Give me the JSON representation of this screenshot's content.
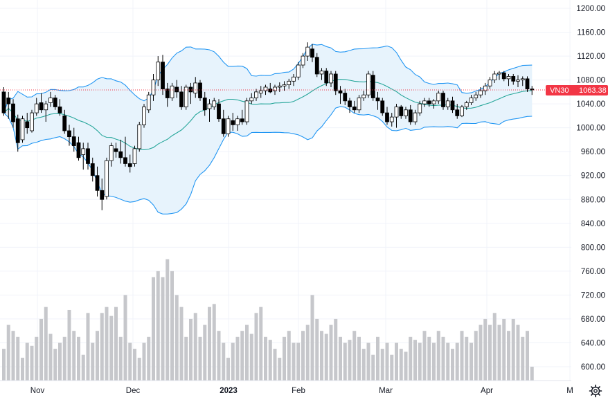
{
  "chart_data": {
    "type": "candlestick",
    "symbol": "VN30",
    "last_price": "1063.38",
    "price_axis": {
      "min": 560,
      "max": 1230,
      "ticks": [
        "1200.00",
        "1160.00",
        "1120.00",
        "1080.00",
        "1040.00",
        "1000.00",
        "960.00",
        "920.00",
        "880.00",
        "840.00",
        "800.00",
        "760.00",
        "720.00",
        "680.00",
        "640.00",
        "600.00"
      ]
    },
    "time_axis": {
      "labels": [
        "Nov",
        "Dec",
        "2023",
        "Feb",
        "Mar",
        "Apr",
        "M"
      ]
    },
    "indicators": [
      "Bollinger Bands (20, 2)",
      "Volume"
    ],
    "colors": {
      "band_fill": "#e7f3fc",
      "band_line": "#2196f3",
      "basis_line": "#26a69a",
      "up_body": "#ffffff",
      "down_body": "#000000",
      "volume": "#c6c7cb",
      "last_label_bg": "#f23645",
      "last_line": "#f23645",
      "grid": "#f0f3fa",
      "text": "#131722"
    },
    "candles": [
      {
        "o": 1060,
        "h": 1068,
        "l": 1020,
        "c": 1025
      },
      {
        "o": 1050,
        "h": 1060,
        "l": 1015,
        "c": 1040
      },
      {
        "o": 1040,
        "h": 1048,
        "l": 1000,
        "c": 1010
      },
      {
        "o": 1015,
        "h": 1022,
        "l": 960,
        "c": 975
      },
      {
        "o": 980,
        "h": 1020,
        "l": 975,
        "c": 1015
      },
      {
        "o": 1010,
        "h": 1025,
        "l": 990,
        "c": 1000
      },
      {
        "o": 995,
        "h": 1030,
        "l": 992,
        "c": 1025
      },
      {
        "o": 1025,
        "h": 1050,
        "l": 1020,
        "c": 1040
      },
      {
        "o": 1042,
        "h": 1058,
        "l": 1025,
        "c": 1030
      },
      {
        "o": 1030,
        "h": 1045,
        "l": 1010,
        "c": 1040
      },
      {
        "o": 1042,
        "h": 1060,
        "l": 1035,
        "c": 1050
      },
      {
        "o": 1050,
        "h": 1055,
        "l": 1030,
        "c": 1035
      },
      {
        "o": 1035,
        "h": 1048,
        "l": 1020,
        "c": 1025
      },
      {
        "o": 1020,
        "h": 1030,
        "l": 990,
        "c": 995
      },
      {
        "o": 995,
        "h": 1005,
        "l": 970,
        "c": 985
      },
      {
        "o": 985,
        "h": 1000,
        "l": 960,
        "c": 970
      },
      {
        "o": 975,
        "h": 985,
        "l": 945,
        "c": 950
      },
      {
        "o": 955,
        "h": 975,
        "l": 930,
        "c": 965
      },
      {
        "o": 965,
        "h": 975,
        "l": 930,
        "c": 940
      },
      {
        "o": 940,
        "h": 950,
        "l": 910,
        "c": 920
      },
      {
        "o": 920,
        "h": 935,
        "l": 885,
        "c": 895
      },
      {
        "o": 895,
        "h": 915,
        "l": 862,
        "c": 880
      },
      {
        "o": 885,
        "h": 950,
        "l": 880,
        "c": 945
      },
      {
        "o": 945,
        "h": 975,
        "l": 935,
        "c": 970
      },
      {
        "o": 965,
        "h": 975,
        "l": 950,
        "c": 960
      },
      {
        "o": 960,
        "h": 980,
        "l": 940,
        "c": 950
      },
      {
        "o": 950,
        "h": 985,
        "l": 935,
        "c": 940
      },
      {
        "o": 940,
        "h": 955,
        "l": 925,
        "c": 935
      },
      {
        "o": 940,
        "h": 970,
        "l": 935,
        "c": 965
      },
      {
        "o": 965,
        "h": 1010,
        "l": 960,
        "c": 1005
      },
      {
        "o": 1005,
        "h": 1040,
        "l": 1000,
        "c": 1035
      },
      {
        "o": 1030,
        "h": 1060,
        "l": 1025,
        "c": 1055
      },
      {
        "o": 1055,
        "h": 1090,
        "l": 1045,
        "c": 1080
      },
      {
        "o": 1080,
        "h": 1120,
        "l": 1070,
        "c": 1110
      },
      {
        "o": 1110,
        "h": 1122,
        "l": 1055,
        "c": 1065
      },
      {
        "o": 1065,
        "h": 1075,
        "l": 1035,
        "c": 1050
      },
      {
        "o": 1050,
        "h": 1075,
        "l": 1045,
        "c": 1070
      },
      {
        "o": 1068,
        "h": 1080,
        "l": 1050,
        "c": 1060
      },
      {
        "o": 1060,
        "h": 1070,
        "l": 1030,
        "c": 1035
      },
      {
        "o": 1035,
        "h": 1072,
        "l": 1030,
        "c": 1068
      },
      {
        "o": 1068,
        "h": 1075,
        "l": 1040,
        "c": 1060
      },
      {
        "o": 1058,
        "h": 1085,
        "l": 1050,
        "c": 1075
      },
      {
        "o": 1075,
        "h": 1080,
        "l": 1045,
        "c": 1050
      },
      {
        "o": 1050,
        "h": 1060,
        "l": 1020,
        "c": 1030
      },
      {
        "o": 1032,
        "h": 1048,
        "l": 1010,
        "c": 1040
      },
      {
        "o": 1035,
        "h": 1050,
        "l": 1030,
        "c": 1045
      },
      {
        "o": 1040,
        "h": 1048,
        "l": 1010,
        "c": 1015
      },
      {
        "o": 1015,
        "h": 1030,
        "l": 985,
        "c": 990
      },
      {
        "o": 990,
        "h": 1020,
        "l": 985,
        "c": 1015
      },
      {
        "o": 1012,
        "h": 1025,
        "l": 995,
        "c": 1005
      },
      {
        "o": 1005,
        "h": 1020,
        "l": 995,
        "c": 1015
      },
      {
        "o": 1015,
        "h": 1030,
        "l": 1005,
        "c": 1010
      },
      {
        "o": 1010,
        "h": 1050,
        "l": 1005,
        "c": 1045
      },
      {
        "o": 1045,
        "h": 1058,
        "l": 1040,
        "c": 1050
      },
      {
        "o": 1050,
        "h": 1065,
        "l": 1045,
        "c": 1060
      },
      {
        "o": 1058,
        "h": 1070,
        "l": 1050,
        "c": 1062
      },
      {
        "o": 1062,
        "h": 1072,
        "l": 1055,
        "c": 1068
      },
      {
        "o": 1065,
        "h": 1075,
        "l": 1058,
        "c": 1060
      },
      {
        "o": 1062,
        "h": 1072,
        "l": 1055,
        "c": 1068
      },
      {
        "o": 1068,
        "h": 1076,
        "l": 1060,
        "c": 1070
      },
      {
        "o": 1070,
        "h": 1078,
        "l": 1062,
        "c": 1072
      },
      {
        "o": 1072,
        "h": 1082,
        "l": 1065,
        "c": 1078
      },
      {
        "o": 1078,
        "h": 1090,
        "l": 1070,
        "c": 1085
      },
      {
        "o": 1085,
        "h": 1110,
        "l": 1080,
        "c": 1105
      },
      {
        "o": 1105,
        "h": 1125,
        "l": 1100,
        "c": 1120
      },
      {
        "o": 1120,
        "h": 1143,
        "l": 1112,
        "c": 1135
      },
      {
        "o": 1132,
        "h": 1140,
        "l": 1110,
        "c": 1118
      },
      {
        "o": 1118,
        "h": 1125,
        "l": 1085,
        "c": 1090
      },
      {
        "o": 1090,
        "h": 1100,
        "l": 1080,
        "c": 1095
      },
      {
        "o": 1095,
        "h": 1100,
        "l": 1070,
        "c": 1075
      },
      {
        "o": 1075,
        "h": 1095,
        "l": 1068,
        "c": 1090
      },
      {
        "o": 1090,
        "h": 1095,
        "l": 1055,
        "c": 1062
      },
      {
        "o": 1062,
        "h": 1070,
        "l": 1040,
        "c": 1058
      },
      {
        "o": 1058,
        "h": 1065,
        "l": 1038,
        "c": 1045
      },
      {
        "o": 1045,
        "h": 1050,
        "l": 1025,
        "c": 1035
      },
      {
        "o": 1035,
        "h": 1045,
        "l": 1025,
        "c": 1030
      },
      {
        "o": 1030,
        "h": 1055,
        "l": 1025,
        "c": 1050
      },
      {
        "o": 1050,
        "h": 1062,
        "l": 1045,
        "c": 1055
      },
      {
        "o": 1055,
        "h": 1095,
        "l": 1050,
        "c": 1090
      },
      {
        "o": 1088,
        "h": 1095,
        "l": 1045,
        "c": 1050
      },
      {
        "o": 1050,
        "h": 1060,
        "l": 1030,
        "c": 1045
      },
      {
        "o": 1045,
        "h": 1050,
        "l": 1020,
        "c": 1025
      },
      {
        "o": 1025,
        "h": 1035,
        "l": 1005,
        "c": 1010
      },
      {
        "o": 1010,
        "h": 1025,
        "l": 1002,
        "c": 1018
      },
      {
        "o": 1018,
        "h": 1040,
        "l": 1000,
        "c": 1035
      },
      {
        "o": 1035,
        "h": 1038,
        "l": 1015,
        "c": 1020
      },
      {
        "o": 1020,
        "h": 1035,
        "l": 1015,
        "c": 1030
      },
      {
        "o": 1030,
        "h": 1038,
        "l": 1005,
        "c": 1010
      },
      {
        "o": 1010,
        "h": 1030,
        "l": 1005,
        "c": 1025
      },
      {
        "o": 1025,
        "h": 1045,
        "l": 1020,
        "c": 1040
      },
      {
        "o": 1040,
        "h": 1050,
        "l": 1035,
        "c": 1045
      },
      {
        "o": 1045,
        "h": 1050,
        "l": 1035,
        "c": 1040
      },
      {
        "o": 1040,
        "h": 1048,
        "l": 1032,
        "c": 1045
      },
      {
        "o": 1045,
        "h": 1062,
        "l": 1040,
        "c": 1058
      },
      {
        "o": 1058,
        "h": 1062,
        "l": 1030,
        "c": 1035
      },
      {
        "o": 1035,
        "h": 1050,
        "l": 1030,
        "c": 1045
      },
      {
        "o": 1045,
        "h": 1052,
        "l": 1025,
        "c": 1030
      },
      {
        "o": 1030,
        "h": 1040,
        "l": 1015,
        "c": 1020
      },
      {
        "o": 1020,
        "h": 1038,
        "l": 1018,
        "c": 1035
      },
      {
        "o": 1035,
        "h": 1045,
        "l": 1030,
        "c": 1042
      },
      {
        "o": 1042,
        "h": 1055,
        "l": 1038,
        "c": 1050
      },
      {
        "o": 1050,
        "h": 1060,
        "l": 1045,
        "c": 1055
      },
      {
        "o": 1055,
        "h": 1068,
        "l": 1050,
        "c": 1062
      },
      {
        "o": 1062,
        "h": 1075,
        "l": 1055,
        "c": 1070
      },
      {
        "o": 1070,
        "h": 1085,
        "l": 1065,
        "c": 1080
      },
      {
        "o": 1080,
        "h": 1095,
        "l": 1075,
        "c": 1090
      },
      {
        "o": 1090,
        "h": 1095,
        "l": 1080,
        "c": 1092
      },
      {
        "o": 1092,
        "h": 1095,
        "l": 1078,
        "c": 1082
      },
      {
        "o": 1082,
        "h": 1090,
        "l": 1070,
        "c": 1086
      },
      {
        "o": 1086,
        "h": 1090,
        "l": 1072,
        "c": 1078
      },
      {
        "o": 1078,
        "h": 1088,
        "l": 1068,
        "c": 1080
      },
      {
        "o": 1080,
        "h": 1086,
        "l": 1070,
        "c": 1082
      },
      {
        "o": 1082,
        "h": 1086,
        "l": 1060,
        "c": 1065
      },
      {
        "o": 1065,
        "h": 1070,
        "l": 1055,
        "c": 1063.38
      }
    ],
    "volumes": [
      630,
      670,
      660,
      650,
      615,
      640,
      635,
      650,
      680,
      700,
      655,
      630,
      640,
      650,
      695,
      660,
      650,
      620,
      690,
      640,
      660,
      690,
      700,
      685,
      700,
      650,
      720,
      640,
      630,
      615,
      640,
      650,
      750,
      760,
      750,
      780,
      760,
      720,
      700,
      650,
      680,
      690,
      650,
      670,
      700,
      705,
      660,
      640,
      615,
      640,
      650,
      660,
      670,
      655,
      690,
      700,
      650,
      645,
      630,
      615,
      650,
      660,
      640,
      640,
      660,
      670,
      720,
      680,
      660,
      655,
      670,
      680,
      650,
      640,
      645,
      660,
      650,
      630,
      640,
      620,
      650,
      630,
      640,
      620,
      640,
      630,
      625,
      650,
      645,
      640,
      660,
      650,
      640,
      660,
      650,
      640,
      630,
      640,
      660,
      650,
      640,
      660,
      670,
      680,
      670,
      690,
      670,
      680,
      660,
      680,
      670,
      650,
      660,
      600
    ]
  }
}
